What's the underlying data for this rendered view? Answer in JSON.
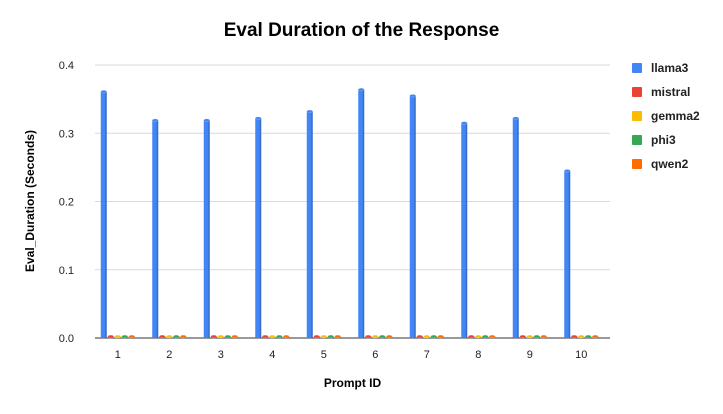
{
  "chart_data": {
    "type": "bar",
    "title": "Eval Duration of the Response",
    "xlabel": "Prompt ID",
    "ylabel": "Eval_Duration (Seconds)",
    "categories": [
      "1",
      "2",
      "3",
      "4",
      "5",
      "6",
      "7",
      "8",
      "9",
      "10"
    ],
    "yticks": [
      "0.0",
      "0.1",
      "0.2",
      "0.3",
      "0.4"
    ],
    "ylim": [
      0,
      0.4
    ],
    "grid": true,
    "legend_position": "right",
    "series": [
      {
        "name": "llama3",
        "color": "#4285f4",
        "values": [
          0.361,
          0.319,
          0.319,
          0.322,
          0.332,
          0.364,
          0.355,
          0.315,
          0.322,
          0.245
        ]
      },
      {
        "name": "mistral",
        "color": "#ea4335",
        "values": [
          0.002,
          0.002,
          0.002,
          0.001,
          0.002,
          0.002,
          0.001,
          0.002,
          0.002,
          0.002
        ]
      },
      {
        "name": "gemma2",
        "color": "#fbbc04",
        "values": [
          0.001,
          0.002,
          0.002,
          0.001,
          0.002,
          0.002,
          0.001,
          0.001,
          0.001,
          0.001
        ]
      },
      {
        "name": "phi3",
        "color": "#34a853",
        "values": [
          0.001,
          0.001,
          0.002,
          0.001,
          0.001,
          0.002,
          0.002,
          0.001,
          0.001,
          0.001
        ]
      },
      {
        "name": "qwen2",
        "color": "#ff6d01",
        "values": [
          0.002,
          0.001,
          0.002,
          0.002,
          0.002,
          0.001,
          0.001,
          0.001,
          0.001,
          0.001
        ]
      }
    ]
  }
}
